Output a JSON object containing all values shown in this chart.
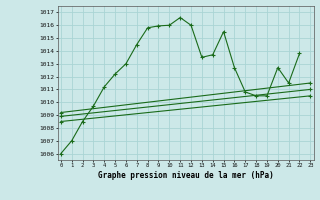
{
  "xlabel": "Graphe pression niveau de la mer (hPa)",
  "bg_color": "#cce8e8",
  "grid_color": "#aad4d4",
  "line_color": "#1a6b1a",
  "ylim": [
    1005.5,
    1017.5
  ],
  "xlim": [
    -0.3,
    23.3
  ],
  "ytick_vals": [
    1006,
    1007,
    1008,
    1009,
    1010,
    1011,
    1012,
    1013,
    1014,
    1015,
    1016,
    1017
  ],
  "xtick_vals": [
    0,
    1,
    2,
    3,
    4,
    5,
    6,
    7,
    8,
    9,
    10,
    11,
    12,
    13,
    14,
    15,
    16,
    17,
    18,
    19,
    20,
    21,
    22,
    23
  ],
  "main_x": [
    0,
    1,
    2,
    3,
    4,
    5,
    6,
    7,
    8,
    9,
    10,
    11,
    12,
    13,
    14,
    15,
    16,
    17,
    18,
    19,
    20,
    21,
    22
  ],
  "main_y": [
    1006.0,
    1007.0,
    1008.5,
    1009.7,
    1011.2,
    1012.2,
    1013.0,
    1014.5,
    1015.8,
    1015.95,
    1016.0,
    1016.6,
    1016.0,
    1013.5,
    1013.7,
    1015.5,
    1012.7,
    1010.8,
    1010.5,
    1010.5,
    1012.7,
    1011.5,
    1013.8
  ],
  "line2_x": [
    0,
    23
  ],
  "line2_y": [
    1008.5,
    1010.5
  ],
  "line3_x": [
    0,
    23
  ],
  "line3_y": [
    1008.9,
    1011.0
  ],
  "line4_x": [
    0,
    23
  ],
  "line4_y": [
    1009.2,
    1011.5
  ]
}
